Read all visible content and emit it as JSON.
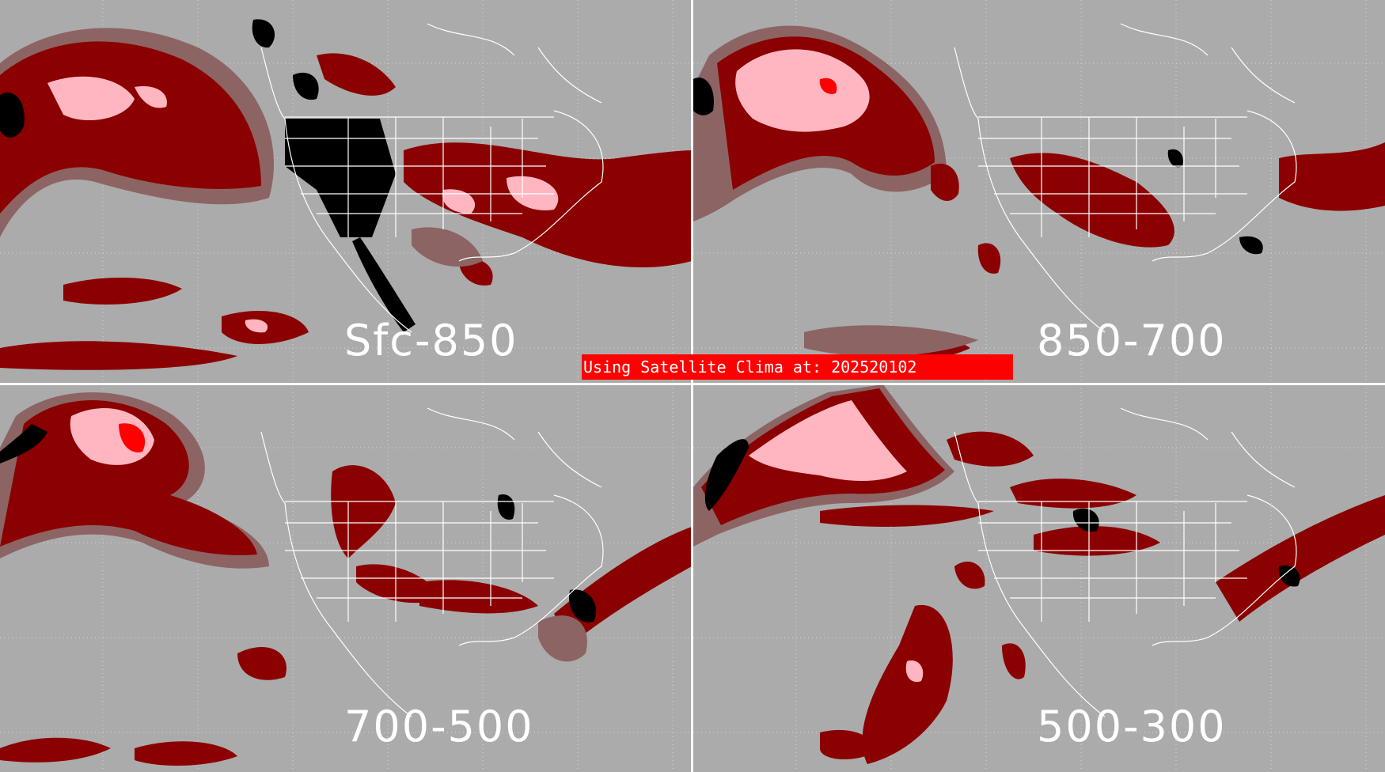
{
  "colors": {
    "background": "#ababab",
    "dark_red": "#8b0000",
    "mid_gray_red": "#8c6464",
    "red": "#ff0000",
    "pink": "#ffb6c1",
    "black": "#000000",
    "borders": "#ffffff",
    "banner": "#ff0000"
  },
  "panels": [
    {
      "id": "tl",
      "label": "Sfc-850"
    },
    {
      "id": "tr",
      "label": "850-700"
    },
    {
      "id": "bl",
      "label": "700-500"
    },
    {
      "id": "br",
      "label": "500-300"
    }
  ],
  "banner": {
    "text": "Using Satellite Clima at: 202520102"
  }
}
